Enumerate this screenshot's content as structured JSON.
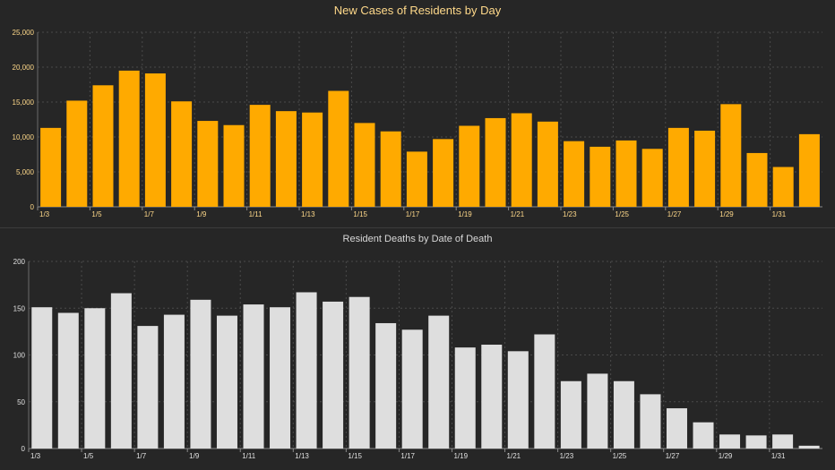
{
  "chart_data": [
    {
      "type": "bar",
      "title": "New Cases of Residents by Day",
      "xlabel": "",
      "ylabel": "",
      "ylim": [
        0,
        25000
      ],
      "yticks": [
        "0",
        "5,000",
        "10,000",
        "15,000",
        "20,000",
        "25,000"
      ],
      "categories": [
        "1/3",
        "1/4",
        "1/5",
        "1/6",
        "1/7",
        "1/8",
        "1/9",
        "1/10",
        "1/11",
        "1/12",
        "1/13",
        "1/14",
        "1/15",
        "1/16",
        "1/17",
        "1/18",
        "1/19",
        "1/20",
        "1/21",
        "1/22",
        "1/23",
        "1/24",
        "1/25",
        "1/26",
        "1/27",
        "1/28",
        "1/29",
        "1/30",
        "1/31",
        "2/1"
      ],
      "tick_labels": [
        "1/3",
        "1/5",
        "1/7",
        "1/9",
        "1/11",
        "1/13",
        "1/15",
        "1/17",
        "1/19",
        "1/21",
        "1/23",
        "1/25",
        "1/27",
        "1/29",
        "1/31"
      ],
      "values": [
        11300,
        15200,
        17400,
        19500,
        19100,
        15100,
        12300,
        11700,
        14600,
        13700,
        13500,
        16600,
        12000,
        10800,
        7900,
        9700,
        11600,
        12700,
        13400,
        12200,
        9400,
        8600,
        9500,
        8300,
        11300,
        10900,
        14700,
        7700,
        5700,
        10400
      ],
      "grid": true,
      "color": "#ffaa00"
    },
    {
      "type": "bar",
      "title": "Resident Deaths by Date of Death",
      "xlabel": "",
      "ylabel": "",
      "ylim": [
        0,
        200
      ],
      "yticks": [
        "0",
        "50",
        "100",
        "150",
        "200"
      ],
      "categories": [
        "1/3",
        "1/4",
        "1/5",
        "1/6",
        "1/7",
        "1/8",
        "1/9",
        "1/10",
        "1/11",
        "1/12",
        "1/13",
        "1/14",
        "1/15",
        "1/16",
        "1/17",
        "1/18",
        "1/19",
        "1/20",
        "1/21",
        "1/22",
        "1/23",
        "1/24",
        "1/25",
        "1/26",
        "1/27",
        "1/28",
        "1/29",
        "1/30",
        "1/31",
        "2/1"
      ],
      "tick_labels": [
        "1/3",
        "1/5",
        "1/7",
        "1/9",
        "1/11",
        "1/13",
        "1/15",
        "1/17",
        "1/19",
        "1/21",
        "1/23",
        "1/25",
        "1/27",
        "1/29",
        "1/31"
      ],
      "values": [
        151,
        145,
        150,
        166,
        131,
        143,
        159,
        142,
        154,
        151,
        167,
        157,
        162,
        134,
        127,
        142,
        108,
        111,
        104,
        122,
        72,
        80,
        72,
        58,
        43,
        28,
        15,
        14,
        15,
        3
      ],
      "grid": true,
      "color": "#dedede"
    }
  ],
  "colors": {
    "background": "#262626",
    "grid": "#4a4a4a",
    "cases_tick_text": "#ffd98a",
    "deaths_tick_text": "#e0e0e0"
  }
}
